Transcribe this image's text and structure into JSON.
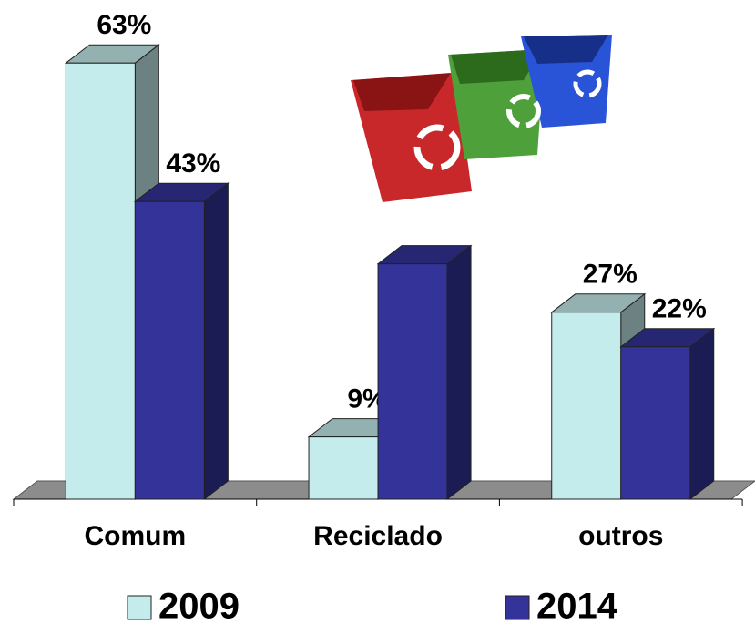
{
  "chart_data": {
    "type": "bar3d",
    "categories": [
      "Comum",
      "Reciclado",
      "outros"
    ],
    "series": [
      {
        "name": "2009",
        "color": "#c4ecec",
        "values": [
          63,
          9,
          27
        ],
        "value_labels": [
          "63%",
          "9%",
          "27%"
        ]
      },
      {
        "name": "2014",
        "color": "#333399",
        "values": [
          43,
          34,
          22
        ],
        "value_labels": [
          "43%",
          null,
          "22%"
        ]
      }
    ]
  }
}
